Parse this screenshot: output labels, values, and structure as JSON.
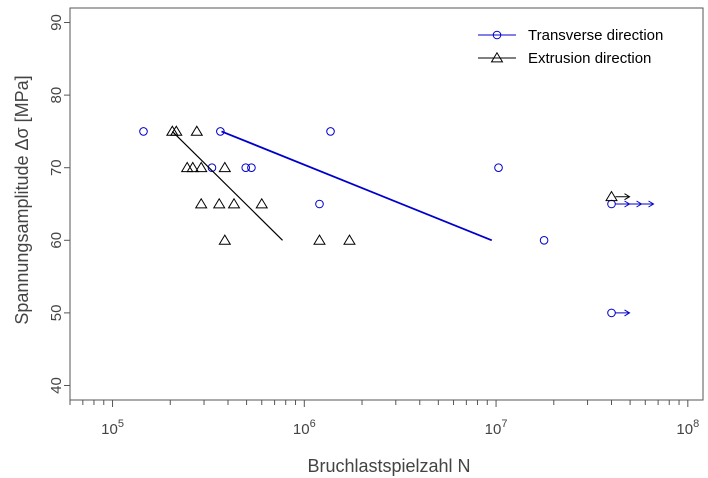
{
  "chart_data": {
    "type": "scatter",
    "xlabel": "Bruchlastspielzahl N",
    "ylabel": "Spannungsamplitude Δσ [MPa]",
    "x_scale": "log",
    "xlim": [
      60000,
      120000000
    ],
    "ylim": [
      38,
      92
    ],
    "x_tick_labels": [
      "10^5",
      "10^6",
      "10^7",
      "10^8"
    ],
    "y_ticks": [
      40,
      50,
      60,
      70,
      80,
      90
    ],
    "grid": false,
    "legend": {
      "position": "top-right"
    },
    "series": [
      {
        "name": "Transverse direction",
        "color": "#0000cc",
        "marker": "circle",
        "points": [
          {
            "x": 145000,
            "y": 75
          },
          {
            "x": 365000,
            "y": 75
          },
          {
            "x": 330000,
            "y": 70
          },
          {
            "x": 495000,
            "y": 70
          },
          {
            "x": 530000,
            "y": 70
          },
          {
            "x": 1200000,
            "y": 65
          },
          {
            "x": 1370000,
            "y": 75
          },
          {
            "x": 10300000,
            "y": 70
          },
          {
            "x": 17800000,
            "y": 60
          }
        ],
        "runouts": [
          {
            "x": 40000000,
            "y": 65
          },
          {
            "x": 40000000,
            "y": 50
          }
        ],
        "fit_line": [
          {
            "x": 370000,
            "y": 75
          },
          {
            "x": 9500000,
            "y": 60
          }
        ]
      },
      {
        "name": "Extrusion direction",
        "color": "#000000",
        "marker": "triangle",
        "points": [
          {
            "x": 205000,
            "y": 75
          },
          {
            "x": 215000,
            "y": 75
          },
          {
            "x": 275000,
            "y": 75
          },
          {
            "x": 245000,
            "y": 70
          },
          {
            "x": 262000,
            "y": 70
          },
          {
            "x": 290000,
            "y": 70
          },
          {
            "x": 385000,
            "y": 70
          },
          {
            "x": 290000,
            "y": 65
          },
          {
            "x": 360000,
            "y": 65
          },
          {
            "x": 430000,
            "y": 65
          },
          {
            "x": 600000,
            "y": 65
          },
          {
            "x": 385000,
            "y": 60
          },
          {
            "x": 1200000,
            "y": 60
          },
          {
            "x": 1720000,
            "y": 60
          }
        ],
        "runouts": [
          {
            "x": 40000000,
            "y": 66
          }
        ],
        "fit_line": [
          {
            "x": 205000,
            "y": 75
          },
          {
            "x": 770000,
            "y": 60
          }
        ]
      }
    ]
  }
}
